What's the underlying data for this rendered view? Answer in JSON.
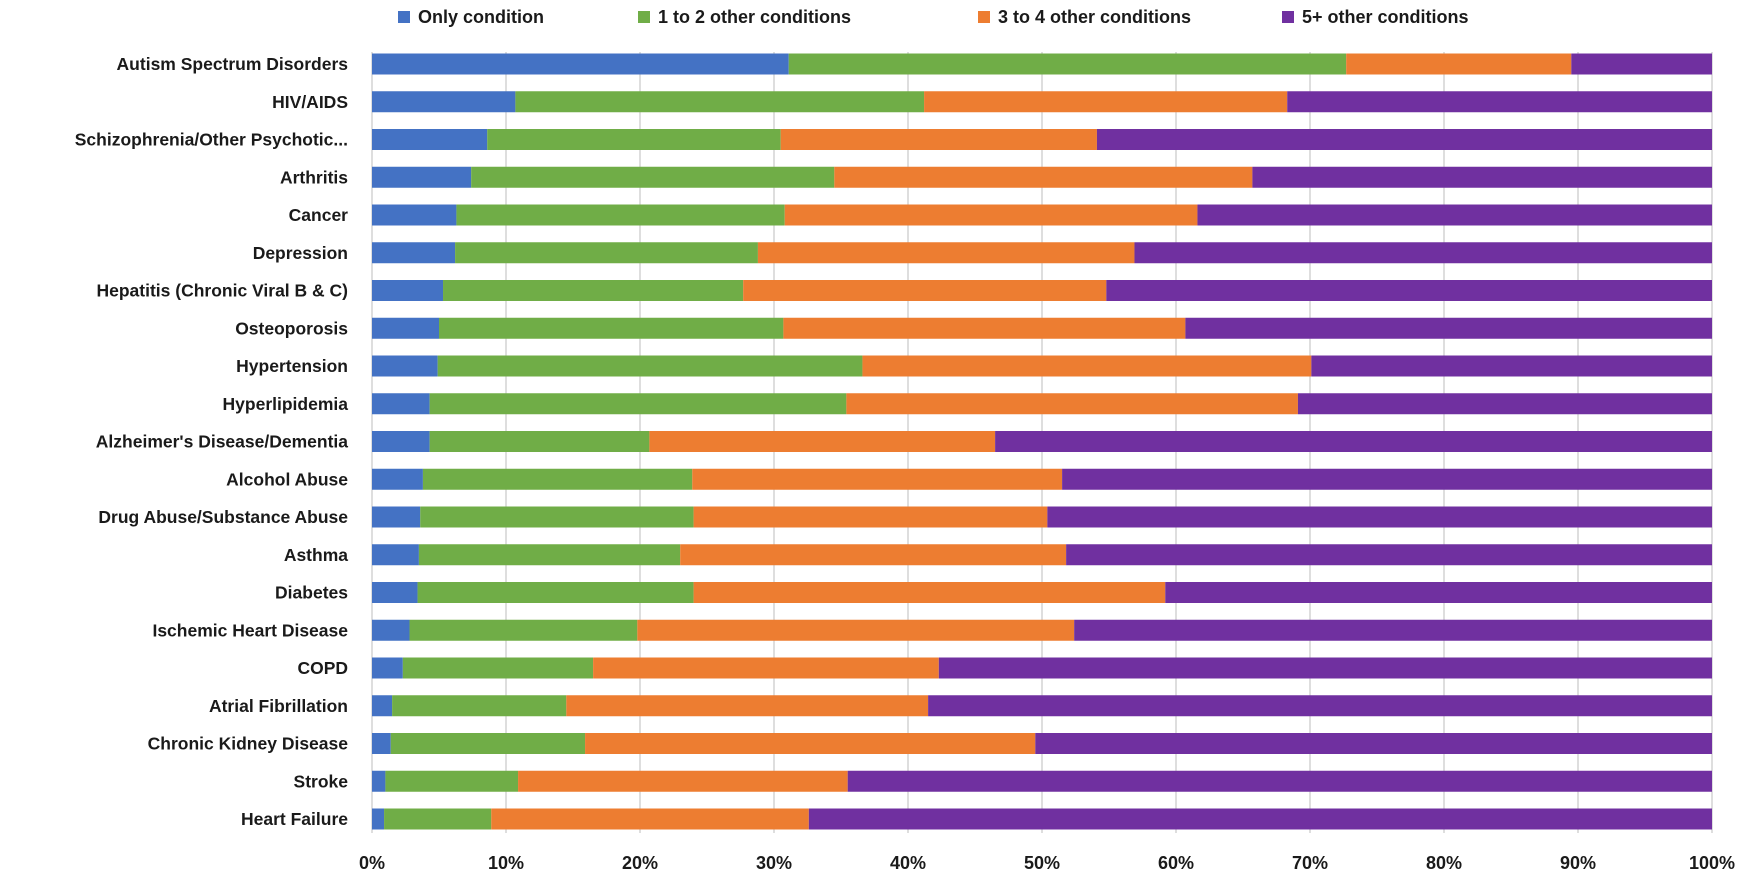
{
  "chart_data": {
    "type": "bar",
    "orientation": "horizontal",
    "stacked": true,
    "percent_stacked": true,
    "legend_position": "top",
    "grid": "vertical",
    "xlim": [
      0,
      100
    ],
    "x_tick_labels": [
      "0%",
      "10%",
      "20%",
      "30%",
      "40%",
      "50%",
      "60%",
      "70%",
      "80%",
      "90%",
      "100%"
    ],
    "categories": [
      "Autism Spectrum Disorders",
      "HIV/AIDS",
      "Schizophrenia/Other Psychotic...",
      "Arthritis",
      "Cancer",
      "Depression",
      "Hepatitis (Chronic Viral B & C)",
      "Osteoporosis",
      "Hypertension",
      "Hyperlipidemia",
      "Alzheimer's Disease/Dementia",
      "Alcohol Abuse",
      "Drug Abuse/Substance Abuse",
      "Asthma",
      "Diabetes",
      "Ischemic Heart Disease",
      "COPD",
      "Atrial Fibrillation",
      "Chronic Kidney Disease",
      "Stroke",
      "Heart Failure"
    ],
    "series": [
      {
        "name": "Only condition",
        "color": "#4472C4",
        "values": [
          31.1,
          10.7,
          8.6,
          7.4,
          6.3,
          6.2,
          5.3,
          5.0,
          4.9,
          4.3,
          4.3,
          3.8,
          3.6,
          3.5,
          3.4,
          2.8,
          2.3,
          1.5,
          1.4,
          1.0,
          0.9
        ]
      },
      {
        "name": "1 to 2 other conditions",
        "color": "#70AD47",
        "values": [
          41.6,
          30.5,
          21.9,
          27.1,
          24.5,
          22.6,
          22.4,
          25.7,
          31.7,
          31.1,
          16.4,
          20.1,
          20.4,
          19.5,
          20.6,
          17.0,
          14.2,
          13.0,
          14.5,
          9.9,
          8.0
        ]
      },
      {
        "name": "3 to 4 other conditions",
        "color": "#ED7D31",
        "values": [
          16.8,
          27.1,
          23.6,
          31.2,
          30.8,
          28.1,
          27.1,
          30.0,
          33.5,
          33.7,
          25.8,
          27.6,
          26.4,
          28.8,
          35.2,
          32.6,
          25.8,
          27.0,
          33.6,
          24.6,
          23.7
        ]
      },
      {
        "name": "5+ other conditions",
        "color": "#7030A0",
        "values": [
          10.5,
          31.7,
          45.9,
          34.3,
          38.4,
          43.1,
          45.2,
          39.3,
          29.9,
          30.9,
          53.5,
          48.5,
          49.6,
          48.2,
          40.8,
          47.6,
          57.7,
          58.5,
          50.5,
          64.5,
          67.4
        ]
      }
    ]
  }
}
